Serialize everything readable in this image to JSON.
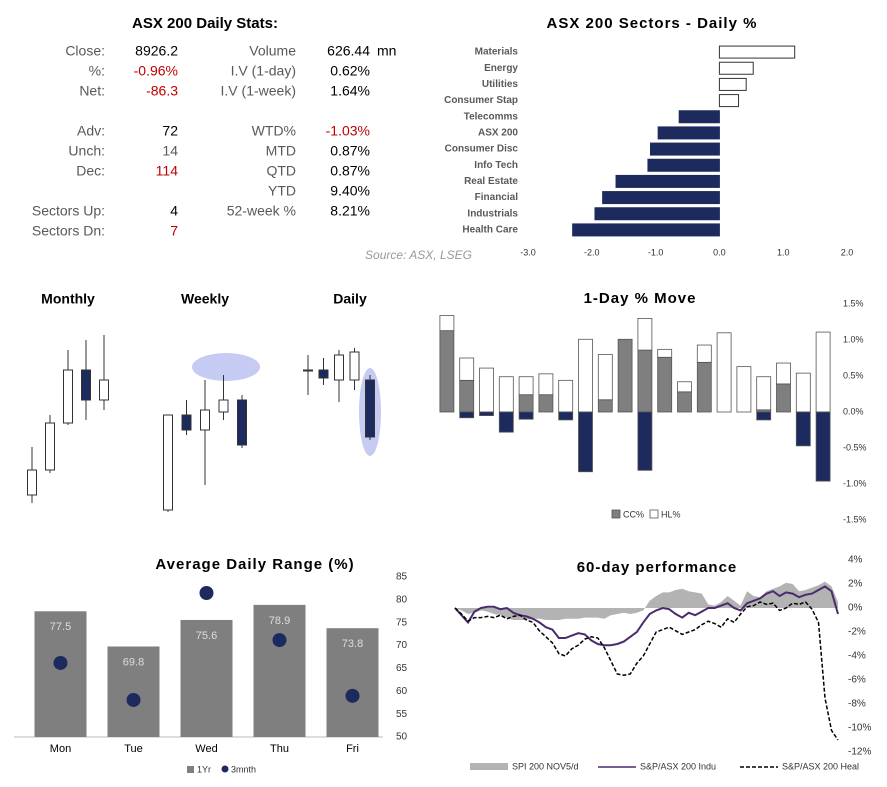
{
  "stats": {
    "title": "ASX 200 Daily Stats:",
    "left_rows": [
      {
        "label": "Close:",
        "value": "8926.2"
      },
      {
        "label": "%:",
        "value": "-0.96%",
        "color": "#c00000"
      },
      {
        "label": "Net:",
        "value": "-86.3",
        "color": "#c00000"
      },
      {
        "label": "Adv:",
        "value": "72"
      },
      {
        "label": "Unch:",
        "value": "14",
        "color": "#595959"
      },
      {
        "label": "Dec:",
        "value": "114",
        "color": "#c00000"
      },
      {
        "label": "Sectors Up:",
        "value": "4"
      },
      {
        "label": "Sectors Dn:",
        "value": "7",
        "color": "#c00000"
      }
    ],
    "right_rows": [
      {
        "label": "Volume",
        "value": "626.44",
        "unit": "mn"
      },
      {
        "label": "I.V (1-day)",
        "value": "0.62%"
      },
      {
        "label": "I.V (1-week)",
        "value": "1.64%"
      },
      {
        "label": "WTD%",
        "value": "-1.03%",
        "color": "#c00000"
      },
      {
        "label": "MTD",
        "value": "0.87%"
      },
      {
        "label": "QTD",
        "value": "0.87%"
      },
      {
        "label": "YTD",
        "value": "9.40%"
      },
      {
        "label": "52-week %",
        "value": "8.21%"
      }
    ],
    "source": "Source: ASX, LSEG"
  },
  "chart_data": [
    {
      "type": "barh",
      "title": "ASX 200 Sectors - Daily %",
      "categories": [
        "Materials",
        "Energy",
        "Utilities",
        "Consumer Stap",
        "Telecomms",
        "ASX 200",
        "Consumer Disc",
        "Info Tech",
        "Real Estate",
        "Financial",
        "Industrials",
        "Health Care"
      ],
      "values": [
        1.18,
        0.53,
        0.42,
        0.3,
        -0.63,
        -0.96,
        -1.08,
        -1.12,
        -1.62,
        -1.83,
        -1.95,
        -2.3
      ],
      "color": "#1c2a5e",
      "positive_color": "#ffffff",
      "xlim": [
        -3,
        2
      ],
      "xticks": [
        {
          "value": -3,
          "label": "-3.0"
        },
        {
          "value": -2,
          "label": "-2.0"
        },
        {
          "value": -1,
          "label": "-1.0"
        },
        {
          "value": 0,
          "label": "0.0"
        },
        {
          "value": 1,
          "label": "1.0"
        },
        {
          "value": 2,
          "label": "2.0"
        }
      ]
    },
    {
      "type": "candlestick",
      "title": "Monthly",
      "ylim": [
        0,
        190
      ],
      "up_color": "#ffffff",
      "down_color": "#1c2a5e",
      "open": [
        25,
        50,
        97,
        150,
        120
      ],
      "high": [
        73,
        105,
        170,
        180,
        185
      ],
      "low": [
        17,
        47,
        95,
        100,
        110
      ],
      "close": [
        50,
        97,
        150,
        120,
        140
      ]
    },
    {
      "type": "candlestick",
      "title": "Weekly",
      "ylim": [
        0,
        190
      ],
      "up_color": "#ffffff",
      "down_color": "#1c2a5e",
      "open": [
        10,
        105,
        90,
        108,
        120
      ],
      "high": [
        105,
        120,
        140,
        145,
        125
      ],
      "low": [
        8,
        85,
        35,
        100,
        72
      ],
      "close": [
        105,
        90,
        110,
        120,
        75
      ]
    },
    {
      "type": "candlestick",
      "title": "Daily",
      "ylim": [
        0,
        190
      ],
      "up_color": "#ffffff",
      "down_color": "#1c2a5e",
      "open": [
        150,
        150,
        140,
        140,
        140
      ],
      "high": [
        165,
        162,
        170,
        172,
        145
      ],
      "low": [
        125,
        135,
        118,
        130,
        80
      ],
      "close": [
        150,
        142,
        165,
        168,
        83
      ]
    },
    {
      "type": "stacked",
      "title": "1-Day % Move",
      "series": [
        {
          "name": "CC%",
          "color": "#7f7f7f",
          "values": [
            1.13,
            0.44,
            0,
            0,
            0.24,
            0.24,
            0,
            0,
            0.17,
            1.01,
            0.86,
            0.76,
            0.28,
            0.69,
            0,
            0,
            0.03,
            0.39,
            0,
            0
          ]
        },
        {
          "name": "HL%",
          "color": "#ffffff",
          "values": [
            0.21,
            0.31,
            0.61,
            0.49,
            0.25,
            0.29,
            0.44,
            1.01,
            0.63,
            0,
            0.44,
            0.11,
            0.14,
            0.24,
            1.1,
            0.63,
            0.46,
            0.29,
            0.54,
            1.11
          ]
        },
        {
          "color": "#1c2a5e",
          "values": [
            0,
            -0.08,
            -0.05,
            -0.28,
            -0.1,
            0,
            -0.11,
            -0.83,
            0,
            0,
            -0.81,
            0,
            0,
            0,
            0,
            0,
            -0.11,
            0,
            -0.47,
            -0.96
          ]
        }
      ],
      "ylim": [
        -1.5,
        1.5
      ],
      "yticks": [
        {
          "value": 1.5,
          "label": "1.5%"
        },
        {
          "value": 1,
          "label": "1.0%"
        },
        {
          "value": 0.5,
          "label": "0.5%"
        },
        {
          "value": 0,
          "label": "0.0%"
        },
        {
          "value": -0.5,
          "label": "-0.5%"
        },
        {
          "value": -1,
          "label": "-1.0%"
        },
        {
          "value": -1.5,
          "label": "-1.5%"
        }
      ]
    },
    {
      "type": "combo",
      "title": "Average Daily Range (%)",
      "categories": [
        "Mon",
        "Tue",
        "Wed",
        "Thu",
        "Fri"
      ],
      "series": [
        {
          "name": "1Yr",
          "color": "#7f7f7f",
          "values": [
            77.5,
            69.8,
            75.6,
            78.9,
            73.8
          ],
          "value_labels": [
            "77.5",
            "69.8",
            "75.6",
            "78.9",
            "73.8"
          ]
        },
        {
          "name": "3mnth",
          "color": "#1c2a5e",
          "values": [
            66.2,
            58.1,
            81.5,
            71.2,
            59.0
          ]
        }
      ],
      "ylim": [
        50,
        85
      ],
      "yticks": [
        85,
        80,
        75,
        70,
        65,
        60,
        55,
        50
      ]
    },
    {
      "type": "line",
      "title": "60-day performance",
      "series": [
        {
          "name": "SPI 200 NOV5/d",
          "color": "#b3b3b3",
          "style": "area",
          "values": [
            0,
            -0.2,
            -0.5,
            -0.4,
            -0.2,
            -0.3,
            -0.5,
            -0.6,
            -0.8,
            -1.0,
            -1.0,
            -1.0,
            -0.9,
            -0.9,
            -1.0,
            -1.0,
            -1.0,
            -0.9,
            -0.9,
            -0.9,
            -0.8,
            -0.8,
            -0.8,
            -0.9,
            -0.6,
            -0.5,
            -0.4,
            -0.5,
            -0.4,
            -0.2,
            0.6,
            1.0,
            1.3,
            1.3,
            1.5,
            1.6,
            1.4,
            1.3,
            1.2,
            0.3,
            0.2,
            0.5,
            1.0,
            0.6,
            0.2,
            1.4,
            1.0,
            0.9,
            1.4,
            1.6,
            1.8,
            2.1,
            2.0,
            1.4,
            1.5,
            1.7,
            1.9,
            2.2,
            1.8,
            0.5
          ]
        },
        {
          "name": "S&P/ASX 200 Indu",
          "color": "#4b2a6e",
          "style": "solid",
          "values": [
            0,
            -0.6,
            -1.2,
            -0.3,
            0.0,
            0.1,
            0.1,
            -0.1,
            0.0,
            -0.4,
            -0.6,
            -0.7,
            -0.9,
            -1.2,
            -1.6,
            -1.8,
            -2.5,
            -2.5,
            -2.3,
            -2.1,
            -2.2,
            -2.7,
            -3.0,
            -3.1,
            -3.1,
            -3.0,
            -2.8,
            -2.4,
            -2.0,
            -1.2,
            -0.5,
            -0.2,
            0.0,
            -0.1,
            -0.5,
            -0.8,
            -0.4,
            -0.6,
            -0.3,
            0.0,
            0.0,
            0.2,
            0.4,
            0.0,
            -0.2,
            0.4,
            0.6,
            0.8,
            1.2,
            1.4,
            1.0,
            1.3,
            1.2,
            0.9,
            1.1,
            1.2,
            1.5,
            1.8,
            1.4,
            -0.5
          ]
        },
        {
          "name": "S&P/ASX 200 Heal",
          "color": "#000000",
          "style": "dashed",
          "values": [
            0,
            -0.5,
            -1.1,
            -0.8,
            -0.8,
            -0.7,
            -0.8,
            -0.6,
            -0.9,
            -0.7,
            -0.6,
            -1.0,
            -1.2,
            -1.9,
            -2.4,
            -2.9,
            -3.8,
            -4.0,
            -3.4,
            -3.1,
            -2.6,
            -2.4,
            -2.5,
            -3.3,
            -4.4,
            -5.5,
            -5.6,
            -5.5,
            -4.6,
            -4.0,
            -3.0,
            -2.0,
            -1.8,
            -1.6,
            -1.9,
            -2.2,
            -2.0,
            -1.8,
            -1.4,
            -1.1,
            -1.3,
            -1.6,
            -0.9,
            -1.2,
            -0.5,
            0.1,
            0.2,
            0.5,
            0.3,
            0.4,
            -0.2,
            0.0,
            0.4,
            0.3,
            0.5,
            -0.1,
            -1.2,
            -7.5,
            -10.2,
            -11.0
          ]
        }
      ],
      "ylim": [
        -12,
        4
      ],
      "yticks": [
        {
          "value": 4,
          "label": "4%"
        },
        {
          "value": 2,
          "label": "2%"
        },
        {
          "value": 0,
          "label": "0%"
        },
        {
          "value": -2,
          "label": "-2%"
        },
        {
          "value": -4,
          "label": "-4%"
        },
        {
          "value": -6,
          "label": "-6%"
        },
        {
          "value": -8,
          "label": "-8%"
        },
        {
          "value": -10,
          "label": "-10%"
        },
        {
          "value": -12,
          "label": "-12%"
        }
      ]
    }
  ]
}
